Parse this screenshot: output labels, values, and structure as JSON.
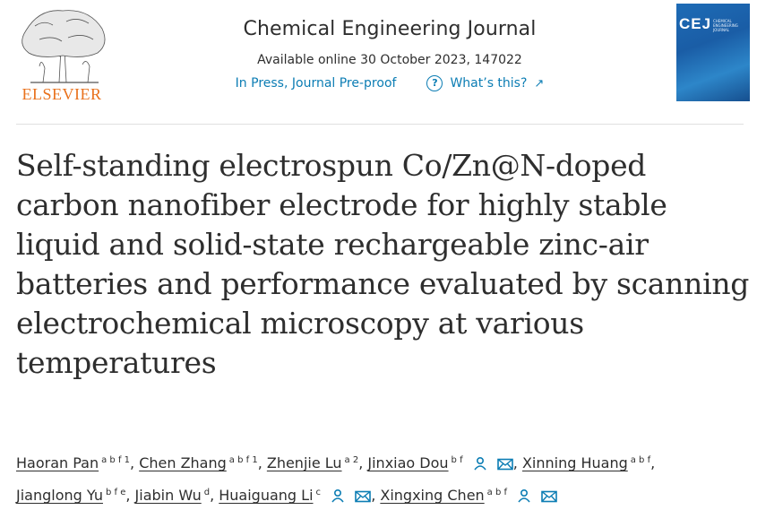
{
  "header": {
    "publisher_logo_text": "ELSEVIER",
    "journal_name": "Chemical Engineering Journal",
    "availability": "Available online 30 October 2023, 147022",
    "status_link": "In Press, Journal Pre-proof",
    "whats_this_link": "What’s this?",
    "cover": {
      "abbrev": "CEJ",
      "subtitle": "CHEMICAL ENGINEERING JOURNAL"
    }
  },
  "article": {
    "title": "Self-standing electrospun Co/Zn@N-doped carbon nanofiber electrode for highly stable liquid and solid-state rechargeable zinc-air batteries and performance evaluated by scanning electrochemical microscopy at various temperatures"
  },
  "authors": [
    {
      "name": "Haoran Pan",
      "affil": "a b f 1"
    },
    {
      "name": "Chen Zhang",
      "affil": "a b f 1"
    },
    {
      "name": "Zhenjie Lu",
      "affil": "a 2"
    },
    {
      "name": "Jinxiao Dou",
      "affil": "b f"
    },
    {
      "name": "Xinning Huang",
      "affil": "a b f"
    },
    {
      "name": "Jianglong Yu",
      "affil": "b f e"
    },
    {
      "name": "Jiabin Wu",
      "affil": "d"
    },
    {
      "name": "Huaiguang Li",
      "affil": "c"
    },
    {
      "name": "Xingxing Chen",
      "affil": "a b f"
    }
  ],
  "colors": {
    "link": "#0c7db4",
    "elsevier_orange": "#e9711c",
    "cover_blue": "#1e6cb6"
  }
}
